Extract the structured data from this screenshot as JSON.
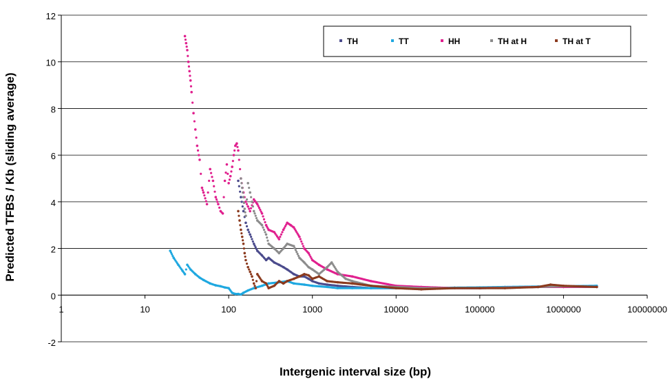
{
  "chart_data": {
    "type": "scatter",
    "title": "",
    "xlabel": "Intergenic interval size (bp)",
    "ylabel": "Predicted TFBS / Kb (sliding average)",
    "x_scale": "log",
    "xlim": [
      1,
      10000000
    ],
    "ylim": [
      -2,
      12
    ],
    "x_ticks": [
      "1",
      "10",
      "100",
      "1000",
      "10000",
      "100000",
      "1000000",
      "10000000"
    ],
    "y_ticks": [
      "-2",
      "0",
      "2",
      "4",
      "6",
      "8",
      "10",
      "12"
    ],
    "grid": "horizontal",
    "legend_position": "top-right",
    "series": [
      {
        "name": "TH",
        "color": "#4b4b8c",
        "x": [
          130,
          140,
          150,
          160,
          170,
          180,
          200,
          220,
          250,
          280,
          300,
          350,
          400,
          450,
          500,
          600,
          700,
          800,
          900,
          1000,
          1200,
          1500,
          2000,
          3000,
          5000,
          10000,
          20000,
          50000,
          100000,
          200000,
          500000,
          1000000,
          2500000
        ],
        "y": [
          4.9,
          4.2,
          3.6,
          3.1,
          2.8,
          2.6,
          2.2,
          1.9,
          1.7,
          1.5,
          1.6,
          1.4,
          1.3,
          1.2,
          1.1,
          0.9,
          0.8,
          0.8,
          0.7,
          0.6,
          0.5,
          0.45,
          0.4,
          0.35,
          0.3,
          0.3,
          0.28,
          0.3,
          0.3,
          0.32,
          0.35,
          0.35,
          0.35
        ]
      },
      {
        "name": "TT",
        "color": "#1fa8e0",
        "x": [
          20,
          22,
          25,
          28,
          30,
          32,
          35,
          40,
          45,
          50,
          60,
          70,
          80,
          90,
          100,
          110,
          120,
          130,
          140,
          150,
          170,
          200,
          250,
          300,
          400,
          500,
          600,
          800,
          1000,
          1500,
          2000,
          3000,
          5000,
          10000,
          20000,
          50000,
          100000,
          200000,
          500000,
          1000000,
          2500000
        ],
        "y": [
          1.9,
          1.6,
          1.3,
          1.05,
          0.9,
          1.3,
          1.1,
          0.9,
          0.75,
          0.65,
          0.5,
          0.42,
          0.38,
          0.33,
          0.3,
          0.1,
          0.05,
          0.05,
          0.03,
          0.1,
          0.2,
          0.3,
          0.4,
          0.5,
          0.55,
          0.6,
          0.5,
          0.45,
          0.4,
          0.35,
          0.3,
          0.3,
          0.3,
          0.3,
          0.3,
          0.32,
          0.33,
          0.35,
          0.37,
          0.38,
          0.4
        ]
      },
      {
        "name": "HH",
        "color": "#e0208e",
        "x": [
          30,
          31,
          32,
          33,
          34,
          35,
          36,
          38,
          40,
          42,
          45,
          48,
          50,
          55,
          60,
          65,
          70,
          75,
          80,
          85,
          90,
          95,
          100,
          105,
          110,
          115,
          120,
          125,
          130,
          140,
          150,
          160,
          170,
          180,
          200,
          220,
          250,
          280,
          300,
          350,
          400,
          450,
          500,
          550,
          600,
          700,
          800,
          900,
          1000,
          1200,
          1500,
          2000,
          3000,
          5000,
          10000,
          20000,
          50000,
          100000,
          200000,
          500000,
          1000000,
          2500000
        ],
        "y": [
          11.1,
          10.8,
          10.5,
          10.0,
          9.6,
          9.2,
          8.7,
          7.8,
          7.1,
          6.4,
          5.8,
          4.6,
          4.4,
          3.9,
          5.4,
          4.9,
          4.2,
          3.9,
          3.6,
          3.5,
          4.9,
          5.6,
          4.8,
          5.1,
          5.5,
          6.0,
          6.4,
          6.5,
          6.2,
          5.0,
          4.4,
          4.0,
          3.8,
          3.6,
          4.1,
          3.9,
          3.5,
          3.0,
          2.8,
          2.7,
          2.4,
          2.8,
          3.1,
          3.0,
          2.9,
          2.5,
          2.0,
          1.8,
          1.5,
          1.3,
          1.1,
          0.9,
          0.8,
          0.6,
          0.4,
          0.35,
          0.3,
          0.3,
          0.32,
          0.35,
          0.35,
          0.35
        ]
      },
      {
        "name": "TH at H",
        "color": "#8c8c8c",
        "x": [
          140,
          145,
          150,
          155,
          160,
          170,
          180,
          190,
          200,
          220,
          250,
          280,
          300,
          350,
          400,
          450,
          500,
          600,
          700,
          800,
          900,
          1000,
          1200,
          1500,
          1700,
          2000,
          2500,
          3000,
          5000,
          10000,
          20000,
          50000,
          100000,
          200000,
          500000,
          1000000,
          2500000
        ],
        "y": [
          5.0,
          4.6,
          4.2,
          3.7,
          3.4,
          4.8,
          4.4,
          4.0,
          3.6,
          3.2,
          3.0,
          2.6,
          2.2,
          2.0,
          1.8,
          2.0,
          2.2,
          2.1,
          1.6,
          1.4,
          1.2,
          1.1,
          0.9,
          1.2,
          1.4,
          1.0,
          0.7,
          0.6,
          0.4,
          0.35,
          0.3,
          0.3,
          0.3,
          0.32,
          0.35,
          0.38,
          0.35
        ]
      },
      {
        "name": "TH at T",
        "color": "#8b3a1e",
        "x": [
          130,
          135,
          140,
          145,
          150,
          155,
          160,
          170,
          180,
          190,
          200,
          210,
          220,
          250,
          280,
          300,
          350,
          400,
          450,
          500,
          600,
          700,
          800,
          900,
          1000,
          1200,
          1500,
          2000,
          3000,
          5000,
          10000,
          20000,
          50000,
          100000,
          200000,
          500000,
          700000,
          1000000,
          2500000
        ],
        "y": [
          3.6,
          3.2,
          2.8,
          2.5,
          2.2,
          1.8,
          1.5,
          1.2,
          1.0,
          0.8,
          0.5,
          0.3,
          0.9,
          0.6,
          0.5,
          0.3,
          0.4,
          0.6,
          0.5,
          0.6,
          0.7,
          0.8,
          0.9,
          0.85,
          0.7,
          0.8,
          0.6,
          0.55,
          0.5,
          0.4,
          0.3,
          0.25,
          0.3,
          0.3,
          0.3,
          0.35,
          0.45,
          0.4,
          0.35
        ]
      }
    ]
  }
}
